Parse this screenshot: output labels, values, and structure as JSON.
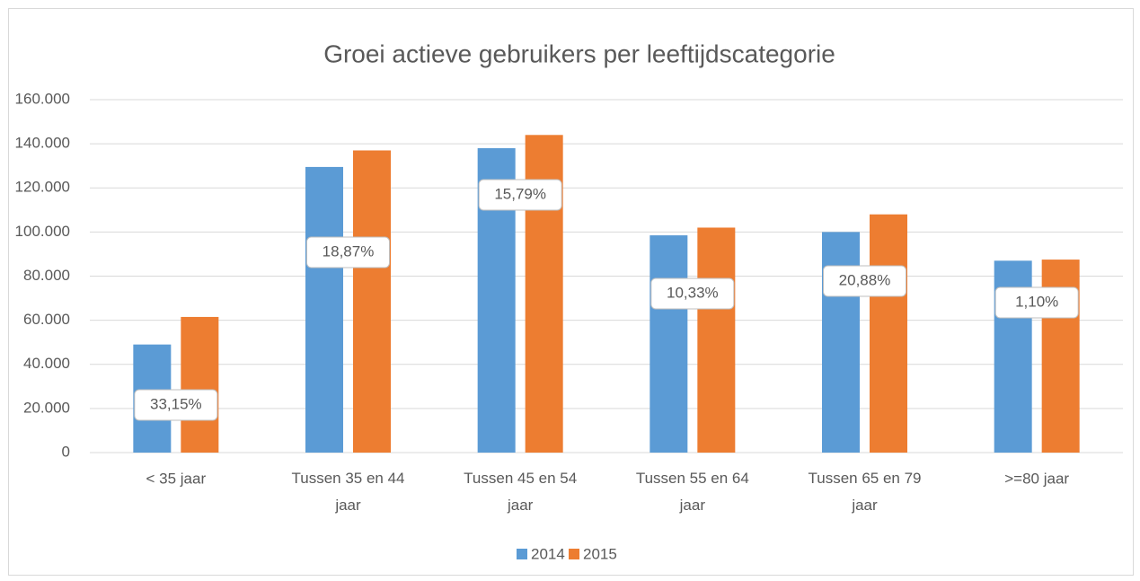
{
  "chart_data": {
    "type": "bar",
    "title": "Groei actieve gebruikers per leeftijdscategorie",
    "categories": [
      "< 35 jaar",
      "Tussen 35 en 44 jaar",
      "Tussen 45 en 54 jaar",
      "Tussen 55 en 64 jaar",
      "Tussen 65 en 79 jaar",
      ">=80 jaar"
    ],
    "series": [
      {
        "name": "2014",
        "color": "#5b9bd5",
        "values": [
          49000,
          129500,
          138000,
          98500,
          100000,
          87000
        ]
      },
      {
        "name": "2015",
        "color": "#ed7d31",
        "values": [
          61500,
          137000,
          144000,
          102000,
          108000,
          87500
        ]
      }
    ],
    "annotations": [
      "33,15%",
      "18,87%",
      "15,79%",
      "10,33%",
      "20,88%",
      "1,10%"
    ],
    "ylim": [
      0,
      160000
    ],
    "yticks": [
      0,
      {
        "value": 20000,
        "label": "20.000"
      },
      {
        "value": 40000,
        "label": "40.000"
      },
      {
        "value": 60000,
        "label": "60.000"
      },
      {
        "value": 80000,
        "label": "80.000"
      },
      {
        "value": 100000,
        "label": "100.000"
      },
      {
        "value": 120000,
        "label": "120.000"
      },
      {
        "value": 140000,
        "label": "140.000"
      },
      {
        "value": 160000,
        "label": "160.000"
      }
    ],
    "grid": true,
    "legend": "bottom"
  }
}
